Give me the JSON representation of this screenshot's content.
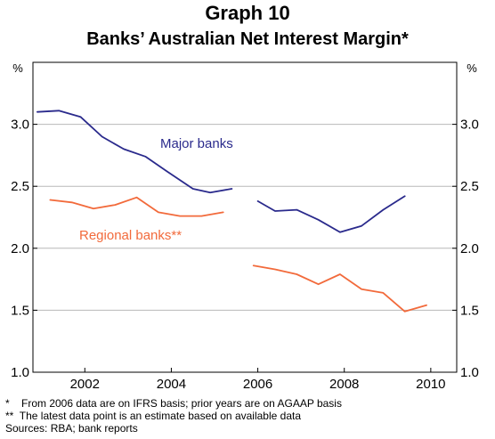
{
  "graph_number": "Graph 10",
  "title": "Banks’ Australian Net Interest Margin*",
  "footnotes": [
    "*    From 2006 data are on IFRS basis; prior years are on AGAAP basis",
    "**  The latest data point is an estimate based on available data",
    "Sources: RBA; bank reports"
  ],
  "chart_data": {
    "type": "line",
    "title": "Banks’ Australian Net Interest Margin*",
    "y_unit_left": "%",
    "y_unit_right": "%",
    "xlim": [
      2000.8,
      2010.6
    ],
    "ylim": [
      1.0,
      3.5
    ],
    "x_ticks": [
      2002,
      2004,
      2006,
      2008,
      2010
    ],
    "y_ticks": [
      1.0,
      1.5,
      2.0,
      2.5,
      3.0
    ],
    "y_tick_labels": [
      "1.0",
      "1.5",
      "2.0",
      "2.5",
      "3.0"
    ],
    "grid": "horizontal",
    "series": [
      {
        "name": "Major banks",
        "color": "#2a2a8c",
        "segments": [
          [
            [
              2000.9,
              3.1
            ],
            [
              2001.4,
              3.11
            ],
            [
              2001.9,
              3.06
            ],
            [
              2002.4,
              2.9
            ],
            [
              2002.9,
              2.8
            ],
            [
              2003.4,
              2.74
            ],
            [
              2003.9,
              2.62
            ],
            [
              2004.5,
              2.48
            ],
            [
              2004.9,
              2.45
            ],
            [
              2005.4,
              2.48
            ]
          ],
          [
            [
              2006.0,
              2.38
            ],
            [
              2006.4,
              2.3
            ],
            [
              2006.9,
              2.31
            ],
            [
              2007.4,
              2.23
            ],
            [
              2007.9,
              2.13
            ],
            [
              2008.4,
              2.18
            ],
            [
              2008.9,
              2.31
            ],
            [
              2009.4,
              2.42
            ]
          ]
        ]
      },
      {
        "name": "Regional banks**",
        "color": "#f26a3b",
        "segments": [
          [
            [
              2001.2,
              2.39
            ],
            [
              2001.7,
              2.37
            ],
            [
              2002.2,
              2.32
            ],
            [
              2002.7,
              2.35
            ],
            [
              2003.2,
              2.41
            ],
            [
              2003.7,
              2.29
            ],
            [
              2004.2,
              2.26
            ],
            [
              2004.7,
              2.26
            ],
            [
              2005.2,
              2.29
            ]
          ],
          [
            [
              2005.9,
              1.86
            ],
            [
              2006.4,
              1.83
            ],
            [
              2006.9,
              1.79
            ],
            [
              2007.4,
              1.71
            ],
            [
              2007.9,
              1.79
            ],
            [
              2008.4,
              1.67
            ],
            [
              2008.9,
              1.64
            ],
            [
              2009.4,
              1.49
            ],
            [
              2009.9,
              1.54
            ]
          ]
        ]
      }
    ]
  }
}
